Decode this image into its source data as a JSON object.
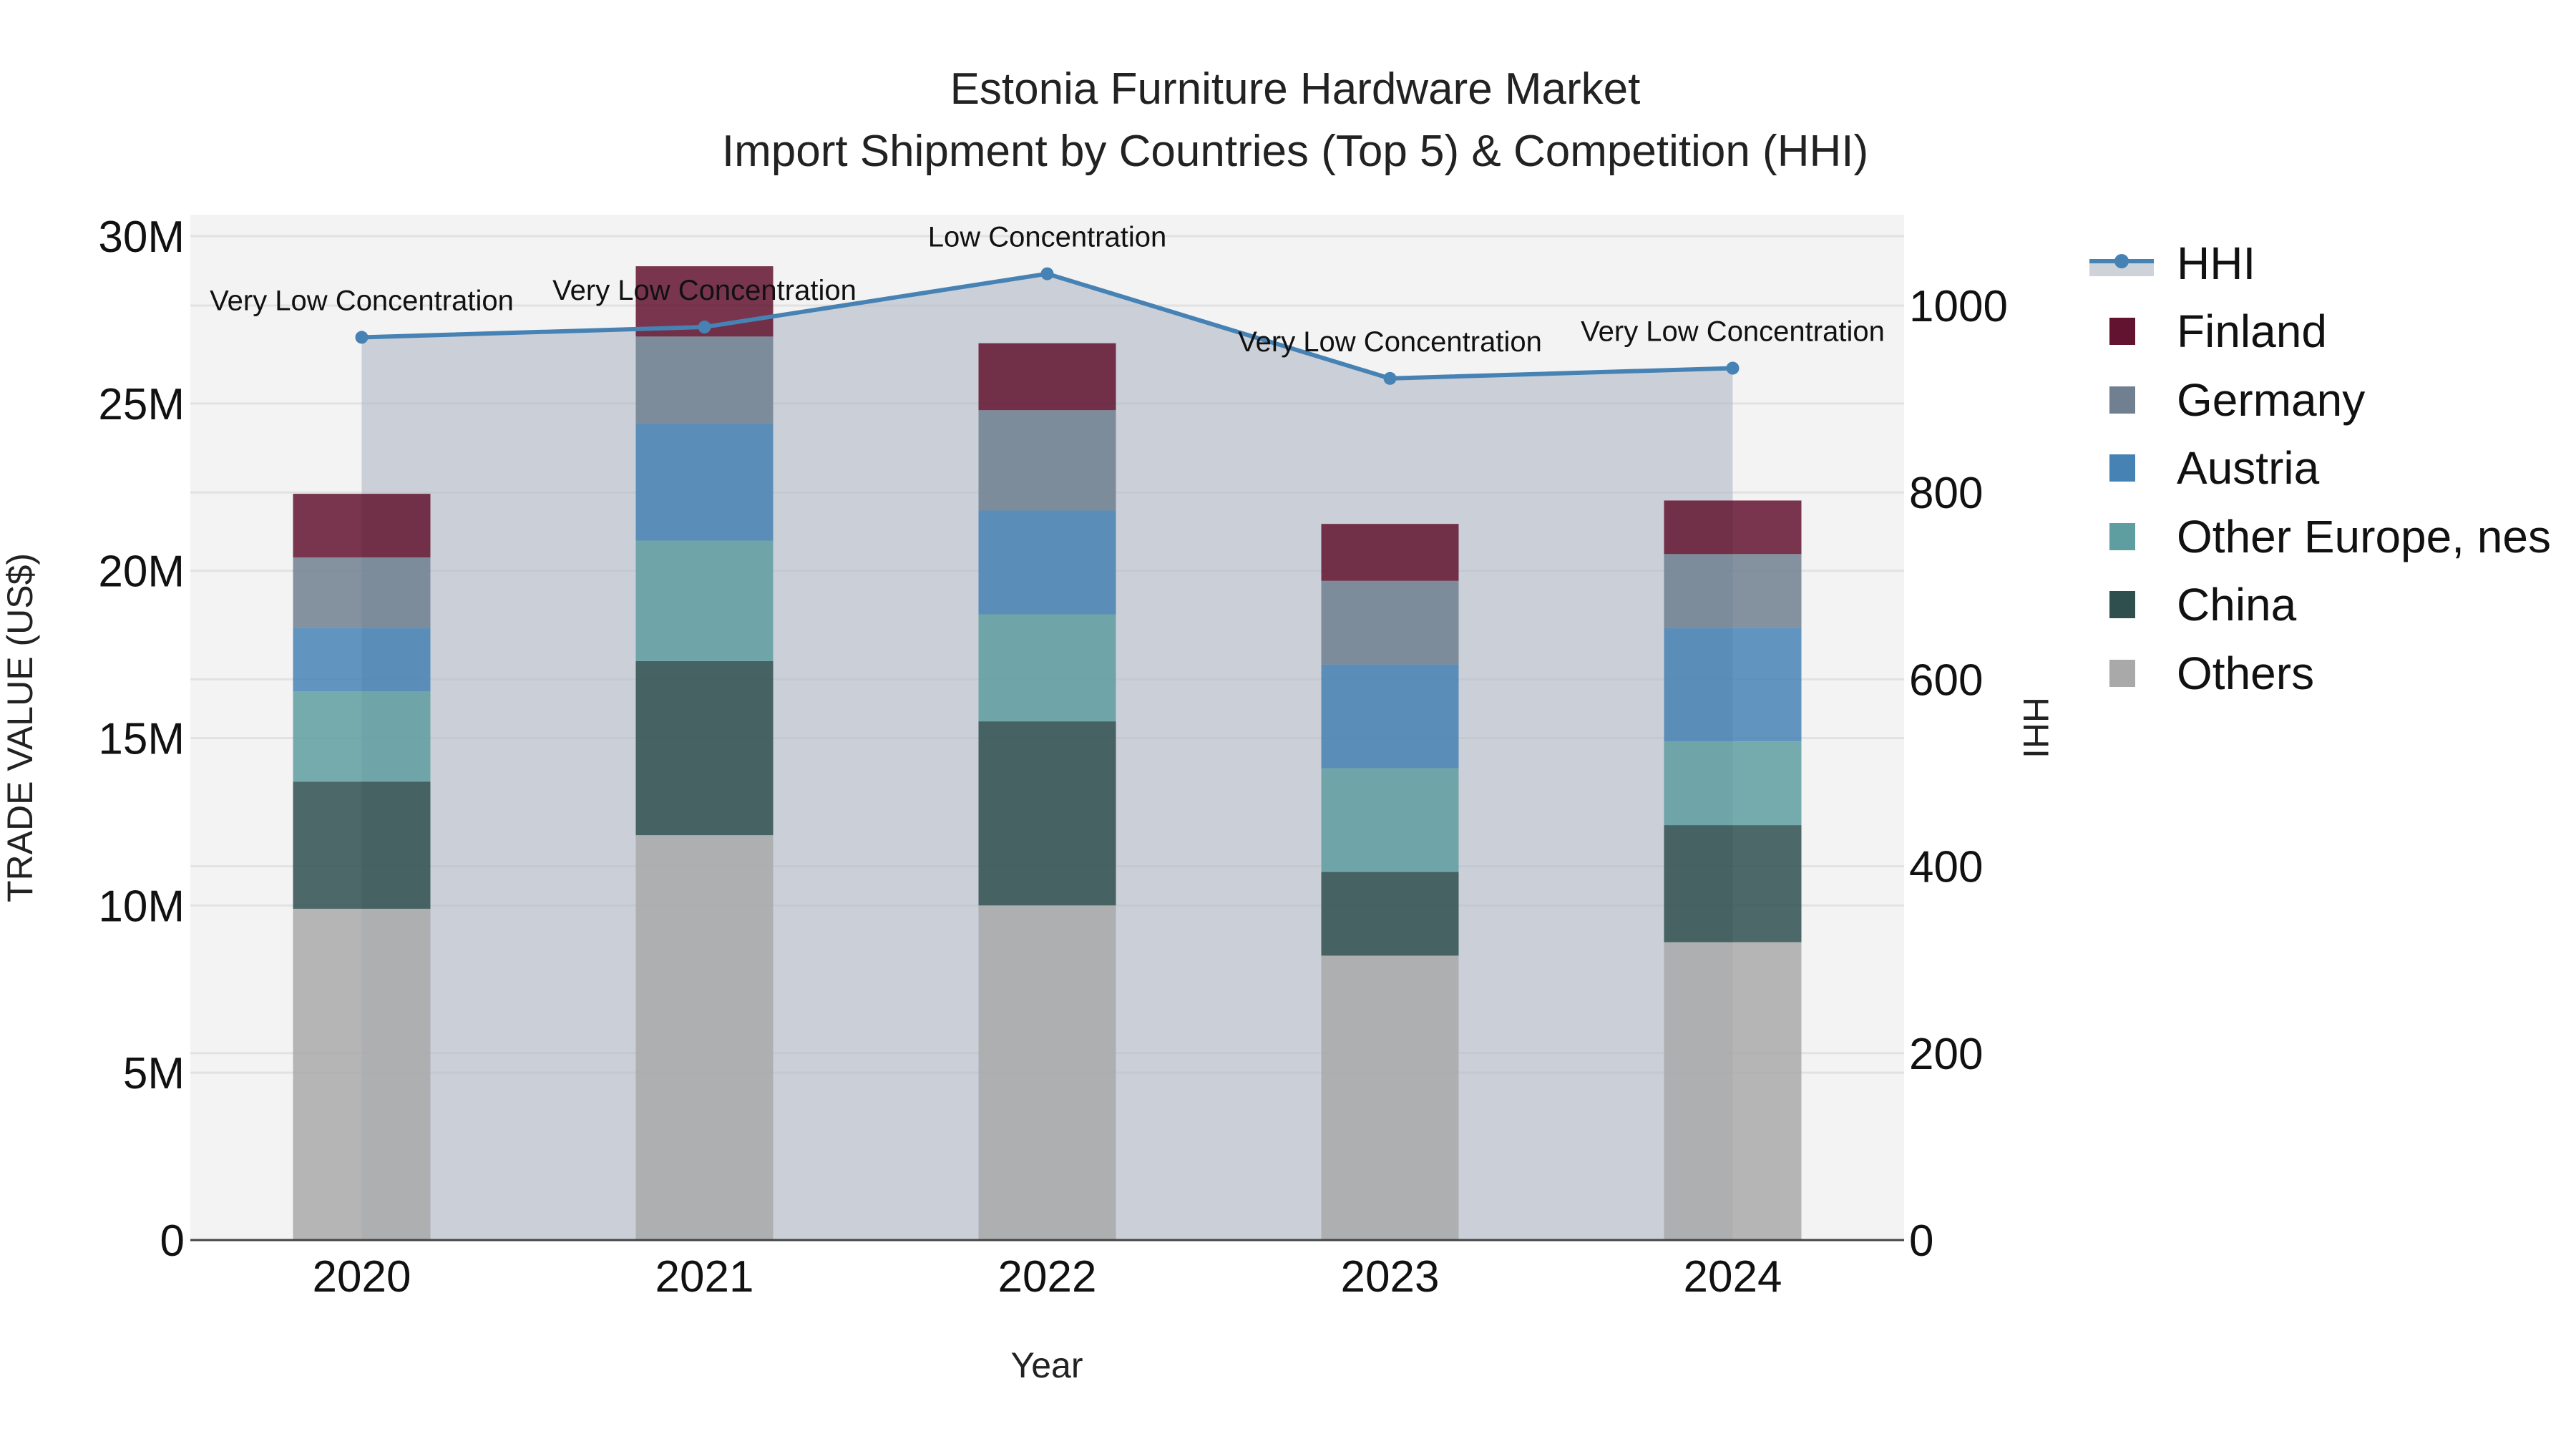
{
  "title": {
    "line1": "Estonia Furniture Hardware Market",
    "line2": "Import Shipment by Countries (Top 5) & Competition (HHI)"
  },
  "axes": {
    "x_label": "Year",
    "y_left_label": "TRADE VALUE (US$)",
    "y_right_label": "HHI",
    "y_left_ticks": [
      "0",
      "5M",
      "10M",
      "15M",
      "20M",
      "25M",
      "30M"
    ],
    "y_right_ticks": [
      "0",
      "200",
      "400",
      "600",
      "800",
      "1000"
    ],
    "x_ticks": [
      "2020",
      "2021",
      "2022",
      "2023",
      "2024"
    ]
  },
  "legend": [
    {
      "label": "HHI",
      "type": "line",
      "color": "#4682b4"
    },
    {
      "label": "Finland",
      "type": "bar",
      "color": "#62132f"
    },
    {
      "label": "Germany",
      "type": "bar",
      "color": "#708090"
    },
    {
      "label": "Austria",
      "type": "bar",
      "color": "#4682b4"
    },
    {
      "label": "Other Europe, nes",
      "type": "bar",
      "color": "#5f9ea0"
    },
    {
      "label": "China",
      "type": "bar",
      "color": "#2f4f4f"
    },
    {
      "label": "Others",
      "type": "bar",
      "color": "#a9a9a9"
    }
  ],
  "annotations": [
    "Very Low Concentration",
    "Very Low Concentration",
    "Low Concentration",
    "Very Low Concentration",
    "Very Low Concentration"
  ],
  "chart_data": {
    "type": "bar",
    "title": "Estonia Furniture Hardware Market — Import Shipment by Countries (Top 5) & Competition (HHI)",
    "xlabel": "Year",
    "ylabel": "TRADE VALUE (US$)",
    "y2label": "HHI",
    "ylim": [
      0,
      30000000
    ],
    "y2lim": [
      0,
      1075
    ],
    "stacked": true,
    "grid": true,
    "legend_position": "right",
    "categories": [
      "2020",
      "2021",
      "2022",
      "2023",
      "2024"
    ],
    "series": [
      {
        "name": "Others",
        "color": "#a9a9a9",
        "values": [
          9900000,
          12100000,
          10000000,
          8500000,
          8900000
        ]
      },
      {
        "name": "China",
        "color": "#2f4f4f",
        "values": [
          3800000,
          5200000,
          5500000,
          2500000,
          3500000
        ]
      },
      {
        "name": "Other Europe, nes",
        "color": "#5f9ea0",
        "values": [
          2700000,
          3600000,
          3200000,
          3100000,
          2500000
        ]
      },
      {
        "name": "Austria",
        "color": "#4682b4",
        "values": [
          1900000,
          3500000,
          3100000,
          3100000,
          3400000
        ]
      },
      {
        "name": "Germany",
        "color": "#708090",
        "values": [
          2100000,
          2600000,
          3000000,
          2500000,
          2200000
        ]
      },
      {
        "name": "Finland",
        "color": "#62132f",
        "values": [
          1900000,
          2100000,
          2000000,
          1700000,
          1600000
        ]
      }
    ],
    "line_series": {
      "name": "HHI",
      "axis": "right",
      "color": "#4682b4",
      "values": [
        966,
        977,
        1034,
        922,
        933
      ],
      "labels": [
        "Very Low Concentration",
        "Very Low Concentration",
        "Low Concentration",
        "Very Low Concentration",
        "Very Low Concentration"
      ]
    }
  }
}
